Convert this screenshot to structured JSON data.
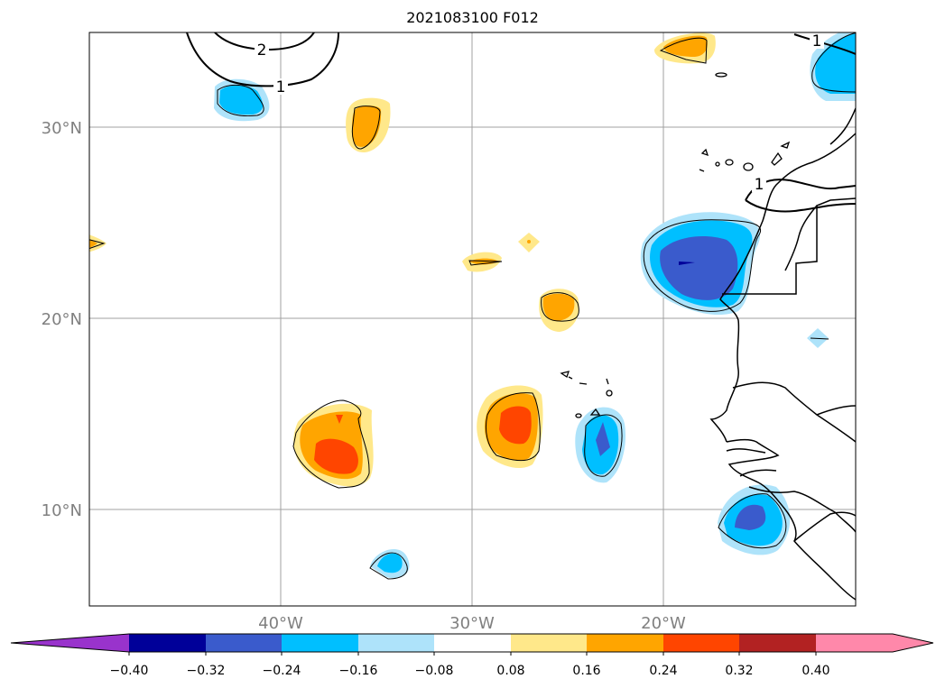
{
  "title": "2021083100 F012",
  "map": {
    "lat_labels": [
      "30°N",
      "20°N",
      "10°N"
    ],
    "lon_labels": [
      "40°W",
      "30°W",
      "20°W"
    ],
    "contour_labels": [
      "2",
      "1",
      "1",
      "1"
    ],
    "grid_color": "#a0a0a0"
  },
  "colorbar": {
    "ticks": [
      "−0.40",
      "−0.32",
      "−0.24",
      "−0.16",
      "−0.08",
      "0.08",
      "0.16",
      "0.24",
      "0.32",
      "0.40"
    ],
    "colors": {
      "lt_-0.40": "#9933cc",
      "-0.40_-0.32": "#000099",
      "-0.32_-0.24": "#3a5bcc",
      "-0.24_-0.16": "#00bfff",
      "-0.16_-0.08": "#aee3fa",
      "-0.08_0.08": "#ffffff",
      "0.08_0.16": "#ffe88a",
      "0.16_0.24": "#ffa500",
      "0.24_0.32": "#ff4500",
      "0.32_0.40": "#b22222",
      "gt_0.40": "#ff88aa"
    }
  }
}
